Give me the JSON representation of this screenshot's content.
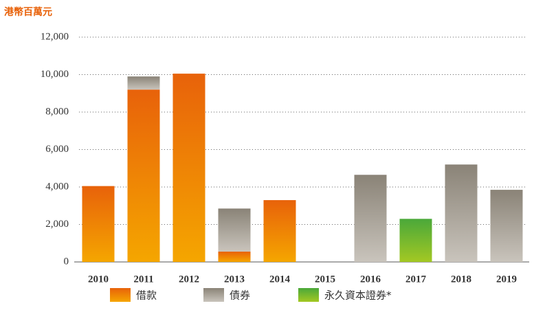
{
  "chart_data": {
    "type": "stacked_bar",
    "y_label": "港幣百萬元",
    "categories": [
      "2010",
      "2011",
      "2012",
      "2013",
      "2014",
      "2015",
      "2016",
      "2017",
      "2018",
      "2019"
    ],
    "series": [
      {
        "name": "借款",
        "color": "#e8620a",
        "gradient": [
          "#e8620a",
          "#f5a600"
        ],
        "values": [
          4050,
          9200,
          10050,
          550,
          3300,
          0,
          0,
          0,
          0,
          0
        ]
      },
      {
        "name": "債券",
        "color": "#8a8377",
        "gradient": [
          "#8a8377",
          "#c9c4bc"
        ],
        "values": [
          0,
          700,
          0,
          2300,
          0,
          0,
          4650,
          0,
          5200,
          3850
        ]
      },
      {
        "name": "永久資本證券*",
        "color": "#4aa83a",
        "gradient": [
          "#4aa83a",
          "#a3c823"
        ],
        "values": [
          0,
          0,
          0,
          0,
          0,
          0,
          0,
          2300,
          0,
          0
        ]
      }
    ],
    "ylim": [
      0,
      12000
    ],
    "yticks": [
      0,
      {
        "value": 2000,
        "label": "2,000"
      },
      {
        "value": 4000,
        "label": "4,000"
      },
      {
        "value": 6000,
        "label": "6,000"
      },
      {
        "value": 8000,
        "label": "8,000"
      },
      {
        "value": 10000,
        "label": "10,000"
      },
      {
        "value": 12000,
        "label": "12,000"
      }
    ],
    "grid": true
  }
}
